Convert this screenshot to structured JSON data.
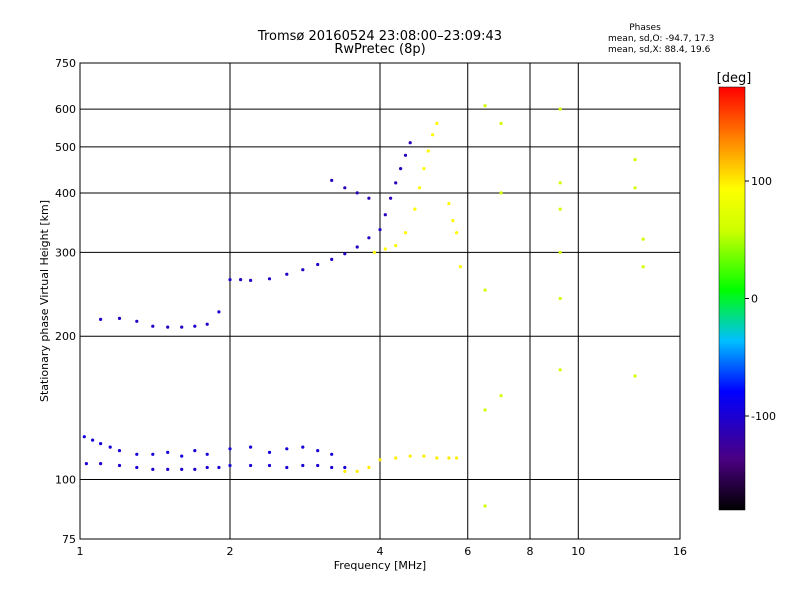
{
  "chart_data": {
    "type": "scatter",
    "title": "Tromsø 20160524 23:08:00–23:09:43",
    "subtitle": "RwPretec (8p)",
    "xlabel": "Frequency [MHz]",
    "ylabel": "Stationary phase Virtual Height [km]",
    "x_scale": "log",
    "y_scale": "log",
    "xlim": [
      1,
      16
    ],
    "ylim": [
      75,
      750
    ],
    "x_ticks": [
      1,
      2,
      4,
      6,
      8,
      10,
      16
    ],
    "x_tick_labels": [
      "1",
      "2",
      "4",
      "6",
      "8",
      "10",
      "16"
    ],
    "y_ticks": [
      75,
      100,
      200,
      300,
      400,
      500,
      600,
      750
    ],
    "y_tick_labels": [
      "75",
      "100",
      "200",
      "300",
      "400",
      "500",
      "600",
      "750"
    ],
    "grid": true,
    "stats": {
      "heading": "Phases",
      "line_o": "mean, sd,O: -94.7, 17.3",
      "line_x": "mean, sd,X:  88.4, 19.6"
    },
    "colorbar": {
      "label": "[deg]",
      "range": [
        -180,
        180
      ],
      "ticks": [
        -100,
        0,
        100
      ],
      "tick_labels": [
        "-100",
        "0",
        "100"
      ]
    },
    "series": [
      {
        "name": "O-mode E trace (blue)",
        "phase_deg": -100,
        "points": [
          [
            1.03,
            108
          ],
          [
            1.1,
            108
          ],
          [
            1.2,
            107
          ],
          [
            1.3,
            106
          ],
          [
            1.4,
            105
          ],
          [
            1.5,
            105
          ],
          [
            1.6,
            105
          ],
          [
            1.7,
            105
          ],
          [
            1.8,
            106
          ],
          [
            1.9,
            106
          ],
          [
            2.0,
            107
          ],
          [
            2.2,
            107
          ],
          [
            2.4,
            107
          ],
          [
            2.6,
            106
          ],
          [
            2.8,
            107
          ],
          [
            3.0,
            107
          ],
          [
            3.2,
            106
          ],
          [
            3.4,
            106
          ]
        ]
      },
      {
        "name": "E upper band (blue)",
        "phase_deg": -95,
        "points": [
          [
            1.02,
            123
          ],
          [
            1.06,
            121
          ],
          [
            1.1,
            119
          ],
          [
            1.15,
            117
          ],
          [
            1.2,
            115
          ],
          [
            1.3,
            113
          ],
          [
            1.4,
            113
          ],
          [
            1.5,
            114
          ],
          [
            1.6,
            112
          ],
          [
            1.7,
            115
          ],
          [
            1.8,
            113
          ],
          [
            2.0,
            116
          ],
          [
            2.2,
            117
          ],
          [
            2.4,
            114
          ],
          [
            2.6,
            116
          ],
          [
            2.8,
            117
          ],
          [
            3.0,
            115
          ],
          [
            3.2,
            113
          ]
        ]
      },
      {
        "name": "O-mode F trace low (blue)",
        "phase_deg": -105,
        "points": [
          [
            1.1,
            217
          ],
          [
            1.2,
            218
          ],
          [
            1.3,
            215
          ],
          [
            1.4,
            210
          ],
          [
            1.5,
            209
          ],
          [
            1.6,
            209
          ],
          [
            1.7,
            210
          ],
          [
            1.8,
            212
          ],
          [
            1.9,
            225
          ],
          [
            2.0,
            263
          ],
          [
            2.1,
            263
          ],
          [
            2.2,
            262
          ],
          [
            2.4,
            264
          ],
          [
            2.6,
            270
          ],
          [
            2.8,
            276
          ],
          [
            3.0,
            283
          ],
          [
            3.2,
            290
          ],
          [
            3.4,
            298
          ],
          [
            3.6,
            308
          ],
          [
            3.8,
            322
          ],
          [
            4.0,
            335
          ]
        ]
      },
      {
        "name": "O-mode F cusp (blue/purple)",
        "phase_deg": -110,
        "points": [
          [
            4.1,
            360
          ],
          [
            4.2,
            390
          ],
          [
            4.3,
            420
          ],
          [
            4.4,
            450
          ],
          [
            4.5,
            480
          ],
          [
            4.6,
            510
          ],
          [
            3.2,
            425
          ],
          [
            3.4,
            410
          ],
          [
            3.6,
            400
          ],
          [
            3.8,
            390
          ]
        ]
      },
      {
        "name": "X-mode E trace (yellow)",
        "phase_deg": 100,
        "points": [
          [
            3.4,
            104
          ],
          [
            3.6,
            104
          ],
          [
            3.8,
            106
          ],
          [
            4.0,
            110
          ],
          [
            4.3,
            111
          ],
          [
            4.6,
            112
          ],
          [
            4.9,
            112
          ],
          [
            5.2,
            111
          ],
          [
            5.5,
            111
          ],
          [
            5.7,
            111
          ]
        ]
      },
      {
        "name": "X-mode F trace (yellow/green)",
        "phase_deg": 95,
        "points": [
          [
            3.9,
            300
          ],
          [
            4.1,
            305
          ],
          [
            4.3,
            310
          ],
          [
            4.5,
            330
          ],
          [
            4.7,
            370
          ],
          [
            4.8,
            410
          ],
          [
            4.9,
            450
          ],
          [
            5.0,
            490
          ],
          [
            5.1,
            530
          ],
          [
            5.2,
            560
          ],
          [
            5.5,
            380
          ],
          [
            5.6,
            350
          ],
          [
            5.7,
            330
          ],
          [
            5.8,
            280
          ]
        ]
      },
      {
        "name": "Scattered echoes (mixed)",
        "phase_deg": 60,
        "points": [
          [
            6.5,
            610
          ],
          [
            7.0,
            560
          ],
          [
            6.5,
            250
          ],
          [
            7.0,
            400
          ],
          [
            9.2,
            420
          ],
          [
            9.2,
            370
          ],
          [
            9.2,
            300
          ],
          [
            9.2,
            240
          ],
          [
            9.2,
            170
          ],
          [
            13.0,
            470
          ],
          [
            13.0,
            410
          ],
          [
            13.5,
            320
          ],
          [
            13.5,
            280
          ],
          [
            13.0,
            165
          ],
          [
            6.5,
            140
          ],
          [
            7.0,
            150
          ],
          [
            6.5,
            88
          ],
          [
            9.2,
            600
          ]
        ]
      }
    ]
  }
}
